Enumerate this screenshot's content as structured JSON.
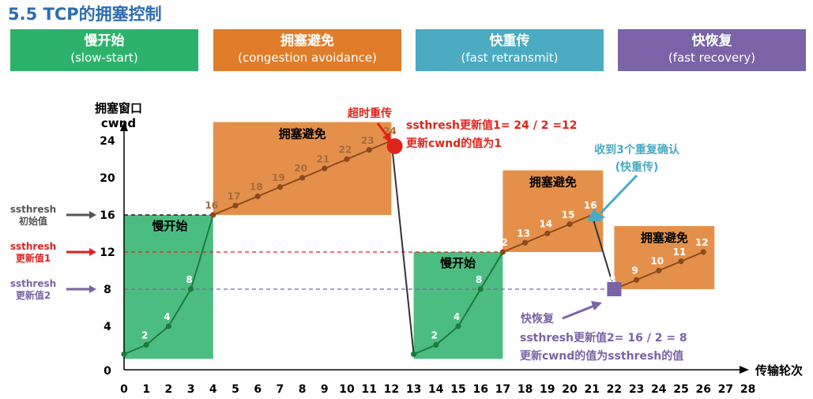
{
  "title": "5.5 TCP的拥塞控制",
  "phases": [
    {
      "zh": "慢开始",
      "en": "(slow-start)",
      "color": "#2db26b"
    },
    {
      "zh": "拥塞避免",
      "en": "(congestion avoidance)",
      "color": "#e07c2a"
    },
    {
      "zh": "快重传",
      "en": "(fast retransmit)",
      "color": "#4aabc2"
    },
    {
      "zh": "快恢复",
      "en": "(fast recovery)",
      "color": "#7a63a6"
    }
  ],
  "chart_data": {
    "type": "line",
    "ylabel_line1": "拥塞窗口",
    "ylabel_line2": "cwnd",
    "xlabel": "传输轮次",
    "ylim": [
      0,
      26
    ],
    "xlim": [
      0,
      28
    ],
    "yticks": [
      0,
      4,
      8,
      12,
      16,
      20,
      24
    ],
    "xticks": [
      0,
      1,
      2,
      3,
      4,
      5,
      6,
      7,
      8,
      9,
      10,
      11,
      12,
      13,
      14,
      15,
      16,
      17,
      18,
      19,
      20,
      21,
      22,
      23,
      24,
      25,
      26,
      27,
      28
    ],
    "series": [
      {
        "x": [
          0,
          1,
          2,
          3,
          4,
          5,
          6,
          7,
          8,
          9,
          10,
          11,
          12
        ],
        "y": [
          1,
          2,
          4,
          8,
          16,
          17,
          18,
          19,
          20,
          21,
          22,
          23,
          24
        ]
      },
      {
        "x": [
          13,
          14,
          15,
          16,
          17,
          18,
          19,
          20,
          21
        ],
        "y": [
          1,
          2,
          4,
          8,
          12,
          13,
          14,
          15,
          16
        ]
      },
      {
        "x": [
          22,
          23,
          24,
          25,
          26
        ],
        "y": [
          8,
          9,
          10,
          11,
          12
        ]
      }
    ],
    "point_labels": [
      {
        "x": 1,
        "y": 2,
        "t": "2",
        "c": "#ffffff"
      },
      {
        "x": 2,
        "y": 4,
        "t": "4",
        "c": "#ffffff"
      },
      {
        "x": 3,
        "y": 8,
        "t": "8",
        "c": "#ffffff"
      },
      {
        "x": 4,
        "y": 16,
        "t": "16",
        "c": "#a46c3c"
      },
      {
        "x": 5,
        "y": 17,
        "t": "17",
        "c": "#a46c3c"
      },
      {
        "x": 6,
        "y": 18,
        "t": "18",
        "c": "#a46c3c"
      },
      {
        "x": 7,
        "y": 19,
        "t": "19",
        "c": "#a46c3c"
      },
      {
        "x": 8,
        "y": 20,
        "t": "20",
        "c": "#a46c3c"
      },
      {
        "x": 9,
        "y": 21,
        "t": "21",
        "c": "#a46c3c"
      },
      {
        "x": 10,
        "y": 22,
        "t": "22",
        "c": "#a46c3c"
      },
      {
        "x": 11,
        "y": 23,
        "t": "23",
        "c": "#a46c3c"
      },
      {
        "x": 12,
        "y": 24,
        "t": "24",
        "c": "#a46c3c"
      },
      {
        "x": 14,
        "y": 2,
        "t": "2",
        "c": "#ffffff"
      },
      {
        "x": 15,
        "y": 4,
        "t": "4",
        "c": "#ffffff"
      },
      {
        "x": 16,
        "y": 8,
        "t": "8",
        "c": "#ffffff"
      },
      {
        "x": 17,
        "y": 12,
        "t": "12",
        "c": "#ffffff"
      },
      {
        "x": 18,
        "y": 13,
        "t": "13",
        "c": "#ffffff"
      },
      {
        "x": 19,
        "y": 14,
        "t": "14",
        "c": "#ffffff"
      },
      {
        "x": 20,
        "y": 15,
        "t": "15",
        "c": "#ffffff"
      },
      {
        "x": 21,
        "y": 16,
        "t": "16",
        "c": "#ffffff"
      },
      {
        "x": 22,
        "y": 8,
        "t": "8",
        "c": "#ffffff"
      },
      {
        "x": 23,
        "y": 9,
        "t": "9",
        "c": "#ffffff"
      },
      {
        "x": 24,
        "y": 10,
        "t": "10",
        "c": "#ffffff"
      },
      {
        "x": 25,
        "y": 11,
        "t": "11",
        "c": "#ffffff"
      },
      {
        "x": 26,
        "y": 12,
        "t": "12",
        "c": "#ffffff"
      }
    ],
    "regions": [
      {
        "x0": 0,
        "x1": 4,
        "y0": 0.5,
        "y1": 16,
        "color": "#2db26b",
        "label": "慢开始",
        "label_color": "#000000"
      },
      {
        "x0": 4,
        "x1": 12,
        "y0": 16,
        "y1": 26,
        "color": "#e07c2a",
        "label": "拥塞避免",
        "label_color": "#000000"
      },
      {
        "x0": 13,
        "x1": 17,
        "y0": 0.5,
        "y1": 12,
        "color": "#2db26b",
        "label": "慢开始",
        "label_color": "#000000"
      },
      {
        "x0": 17,
        "x1": 21.5,
        "y0": 12,
        "y1": 20.8,
        "color": "#e07c2a",
        "label": "拥塞避免",
        "label_color": "#000000"
      },
      {
        "x0": 22,
        "x1": 26.5,
        "y0": 8,
        "y1": 14.8,
        "color": "#e07c2a",
        "label": "拥塞避免",
        "label_color": "#000000"
      }
    ],
    "thresholds": [
      {
        "y": 16,
        "color": "#000000",
        "label_line1": "ssthresh",
        "label_line2": "初始值",
        "arrow_color": "#555555"
      },
      {
        "y": 12,
        "color": "#e02020",
        "label_line1": "ssthresh",
        "label_line2": "更新值1",
        "arrow_color": "#e02020"
      },
      {
        "y": 8,
        "color": "#7a63a6",
        "label_line1": "ssthresh",
        "label_line2": "更新值2",
        "arrow_color": "#7a63a6"
      }
    ],
    "annotations": {
      "timeout": "超时重传",
      "update1_line1": "ssthresh更新值1= 24 / 2 =12",
      "update1_line2": "更新cwnd的值为1",
      "dupack_line1": "收到3个重复确认",
      "dupack_line2": "(快重传)",
      "fast_recovery": "快恢复",
      "update2_line1": "ssthresh更新值2= 16 / 2 = 8",
      "update2_line2": "更新cwnd的值为ssthresh的值"
    },
    "colors": {
      "line_green": "#1d7a3e",
      "line_brown": "#8b4a1c",
      "red": "#e0241a",
      "teal": "#4aabc2",
      "purple": "#7a63a6"
    }
  }
}
